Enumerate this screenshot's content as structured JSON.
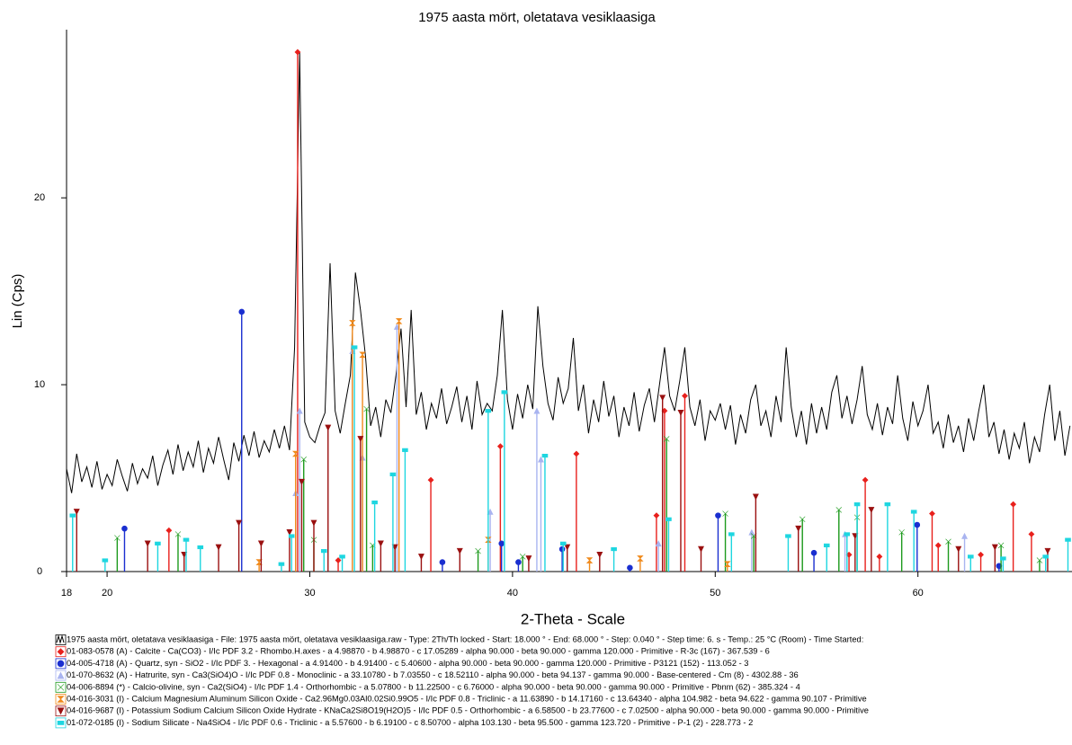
{
  "chart_data": {
    "type": "xrd",
    "title": "1975 aasta mört, oletatava vesiklaasiga",
    "xlabel": "2-Theta - Scale",
    "ylabel": "Lin (Cps)",
    "xlim": [
      18,
      67.6
    ],
    "ylim": [
      0,
      29
    ],
    "xticks": [
      18,
      20,
      30,
      40,
      50,
      60
    ],
    "yticks": [
      0,
      10,
      20
    ],
    "series": [
      {
        "name": "1975 aasta mört, oletatava vesiklaasiga - File: 1975 aasta mört, oletatava vesiklaasiga.raw - Type: 2Th/Th locked - Start: 18.000 ° - End: 68.000 ° - Step: 0.040 ° - Step time: 6. s - Temp.: 25 °C (Room) - Time Started:",
        "type": "line",
        "color": "#000000",
        "x": [
          18,
          18.25,
          18.5,
          18.75,
          19,
          19.25,
          19.5,
          19.75,
          20,
          20.25,
          20.5,
          20.75,
          21,
          21.25,
          21.5,
          21.75,
          22,
          22.25,
          22.5,
          22.75,
          23,
          23.25,
          23.5,
          23.75,
          24,
          24.25,
          24.5,
          24.75,
          25,
          25.25,
          25.5,
          25.75,
          26,
          26.25,
          26.5,
          26.75,
          27,
          27.25,
          27.5,
          27.75,
          28,
          28.25,
          28.5,
          28.75,
          29,
          29.25,
          29.5,
          29.75,
          30,
          30.25,
          30.5,
          30.75,
          31,
          31.25,
          31.5,
          31.75,
          32,
          32.25,
          32.5,
          32.75,
          33,
          33.25,
          33.5,
          33.75,
          34,
          34.25,
          34.5,
          34.75,
          35,
          35.25,
          35.5,
          35.75,
          36,
          36.25,
          36.5,
          36.75,
          37,
          37.25,
          37.5,
          37.75,
          38,
          38.25,
          38.5,
          38.75,
          39,
          39.25,
          39.5,
          39.75,
          40,
          40.25,
          40.5,
          40.75,
          41,
          41.25,
          41.5,
          41.75,
          42,
          42.25,
          42.5,
          42.75,
          43,
          43.25,
          43.5,
          43.75,
          44,
          44.25,
          44.5,
          44.75,
          45,
          45.25,
          45.5,
          45.75,
          46,
          46.25,
          46.5,
          46.75,
          47,
          47.25,
          47.5,
          47.75,
          48,
          48.25,
          48.5,
          48.75,
          49,
          49.25,
          49.5,
          49.75,
          50,
          50.25,
          50.5,
          50.75,
          51,
          51.25,
          51.5,
          51.75,
          52,
          52.25,
          52.5,
          52.75,
          53,
          53.25,
          53.5,
          53.75,
          54,
          54.25,
          54.5,
          54.75,
          55,
          55.25,
          55.5,
          55.75,
          56,
          56.25,
          56.5,
          56.75,
          57,
          57.25,
          57.5,
          57.75,
          58,
          58.25,
          58.5,
          58.75,
          59,
          59.25,
          59.5,
          59.75,
          60,
          60.25,
          60.5,
          60.75,
          61,
          61.25,
          61.5,
          61.75,
          62,
          62.25,
          62.5,
          62.75,
          63,
          63.25,
          63.5,
          63.75,
          64,
          64.25,
          64.5,
          64.75,
          65,
          65.25,
          65.5,
          65.75,
          66,
          66.25,
          66.5,
          66.75,
          67,
          67.25,
          67.5
        ],
        "values": [
          5.5,
          4.2,
          6.3,
          4.8,
          5.6,
          4.5,
          5.9,
          4.4,
          5.2,
          4.6,
          6.0,
          5.1,
          4.3,
          5.8,
          4.7,
          5.5,
          5.0,
          6.2,
          4.6,
          5.7,
          6.5,
          5.2,
          6.8,
          5.4,
          6.4,
          5.6,
          7.0,
          5.3,
          6.6,
          5.8,
          7.2,
          6.0,
          4.9,
          6.9,
          5.9,
          7.3,
          6.2,
          7.5,
          6.1,
          7.0,
          6.4,
          7.6,
          6.6,
          7.8,
          6.5,
          12.0,
          27.8,
          8.0,
          7.2,
          6.9,
          7.8,
          8.5,
          16.5,
          8.6,
          7.4,
          9.0,
          10.5,
          16.0,
          14.0,
          11.5,
          7.8,
          8.8,
          7.2,
          9.2,
          8.5,
          10.5,
          13.0,
          8.8,
          14.0,
          8.4,
          9.6,
          7.6,
          9.0,
          8.2,
          9.8,
          7.9,
          8.8,
          9.9,
          8.0,
          9.4,
          7.6,
          10.2,
          8.4,
          9.0,
          8.6,
          10.5,
          14.0,
          9.2,
          7.6,
          9.5,
          8.2,
          10.0,
          8.7,
          14.2,
          11.0,
          9.0,
          8.1,
          10.4,
          9.0,
          9.8,
          12.5,
          8.6,
          10.0,
          7.4,
          9.2,
          8.0,
          10.2,
          8.3,
          9.4,
          7.2,
          8.8,
          7.8,
          9.6,
          7.5,
          8.9,
          9.8,
          8.0,
          10.0,
          12.0,
          9.4,
          8.6,
          10.2,
          12.0,
          8.8,
          7.8,
          9.2,
          7.0,
          8.6,
          8.1,
          9.0,
          7.6,
          8.9,
          6.8,
          8.4,
          7.4,
          9.2,
          10.0,
          7.8,
          8.6,
          7.2,
          9.4,
          8.0,
          12.0,
          8.8,
          7.2,
          8.6,
          6.8,
          9.0,
          7.4,
          8.8,
          7.6,
          9.6,
          10.5,
          8.2,
          9.4,
          7.9,
          9.2,
          11.0,
          8.4,
          7.6,
          9.0,
          7.3,
          8.8,
          7.9,
          10.5,
          8.2,
          7.0,
          9.1,
          7.8,
          8.6,
          10.0,
          7.4,
          8.0,
          6.6,
          8.4,
          6.9,
          7.8,
          6.4,
          8.2,
          7.0,
          8.6,
          10.0,
          7.2,
          8.0,
          6.3,
          7.6,
          6.0,
          7.4,
          6.6,
          8.0,
          5.8,
          7.2,
          6.4,
          8.4,
          10.0,
          7.0,
          8.6,
          6.2,
          7.8
        ]
      },
      {
        "name": "01-083-0578 (A) - Calcite - Ca(CO3) - I/Ic PDF 3.2 - Rhombo.H.axes - a 4.98870 - b 4.98870 - c 17.05289 - alpha 90.000 - beta 90.000 - gamma 120.000 - Primitive - R-3c (167) - 367.539 - 6",
        "type": "stick",
        "marker": "diamond",
        "color": "#e8201c",
        "x": [
          23.05,
          29.4,
          31.4,
          35.97,
          39.4,
          43.15,
          47.1,
          47.5,
          48.5,
          56.6,
          57.4,
          58.1,
          60.7,
          61.0,
          63.1,
          64.7,
          65.6
        ],
        "values": [
          2.2,
          27.8,
          0.6,
          4.9,
          6.7,
          6.3,
          3.0,
          8.6,
          9.4,
          0.9,
          4.9,
          0.8,
          3.1,
          1.4,
          0.9,
          3.6,
          2.0
        ]
      },
      {
        "name": "04-005-4718 (A) - Quartz, syn - SiO2 - I/Ic PDF 3. - Hexagonal - a 4.91400 - b 4.91400 - c 5.40600 - alpha 90.000 - beta 90.000 - gamma 120.000 - Primitive - P3121 (152) - 113.052 - 3",
        "type": "stick",
        "marker": "circle",
        "color": "#1a2fd0",
        "x": [
          20.86,
          26.64,
          36.54,
          39.46,
          40.29,
          42.45,
          45.79,
          50.14,
          54.87,
          59.96,
          64.0
        ],
        "values": [
          2.3,
          13.9,
          0.5,
          1.5,
          0.5,
          1.2,
          0.2,
          3.0,
          1.0,
          2.5,
          0.3
        ]
      },
      {
        "name": "01-070-8632 (A) - Hatrurite, syn - Ca3(SiO4)O - I/Ic PDF 0.8 - Monoclinic - a 33.10780 - b 7.03550 - c 18.52110 - alpha 90.000 - beta 94.137 - gamma 90.000 - Base-centered - Cm (8) - 4302.88 - 36",
        "type": "stick",
        "marker": "triangle",
        "color": "#a9b4f0",
        "x": [
          29.3,
          29.5,
          32.1,
          32.6,
          34.3,
          38.9,
          41.2,
          41.4,
          47.2,
          51.8,
          56.4,
          62.3
        ],
        "values": [
          4.2,
          8.6,
          11.8,
          6.1,
          13.1,
          3.2,
          8.6,
          6.0,
          1.5,
          2.1,
          2.0,
          1.9
        ]
      },
      {
        "name": "04-006-8894 (*) - Calcio-olivine, syn - Ca2(SiO4) - I/Ic PDF 1.4 - Orthorhombic - a 5.07800 - b 11.22500 - c 6.76000 - alpha 90.000 - beta 90.000 - gamma 90.000 - Primitive - Pbnm (62) - 385.324 - 4",
        "type": "stick",
        "marker": "bowtie",
        "color": "#1d9a1d",
        "x": [
          20.5,
          23.5,
          29.7,
          30.2,
          32.8,
          33.1,
          38.3,
          40.5,
          47.6,
          50.5,
          51.9,
          54.3,
          56.1,
          57.0,
          59.2,
          61.5,
          64.1,
          66.0
        ],
        "values": [
          1.8,
          2.0,
          6.0,
          1.7,
          8.7,
          1.4,
          1.1,
          0.8,
          7.1,
          3.1,
          1.9,
          2.8,
          3.3,
          2.9,
          2.1,
          1.6,
          1.4,
          0.6
        ]
      },
      {
        "name": "04-016-3031 (I) - Calcium Magnesium Aluminum Silicon Oxide - Ca2.96Mg0.03Al0.02Si0.99O5 - I/Ic PDF 0.8 - Triclinic - a 11.63890 - b 14.17160 - c 13.64340 - alpha 104.982 - beta 94.622 - gamma 90.107 - Primitive",
        "type": "stick",
        "marker": "hourglass",
        "color": "#f08a1c",
        "x": [
          27.5,
          29.3,
          32.1,
          32.6,
          34.4,
          38.8,
          43.8,
          46.3,
          50.6
        ],
        "values": [
          0.5,
          6.3,
          13.3,
          11.6,
          13.4,
          1.7,
          0.6,
          0.7,
          0.4
        ]
      },
      {
        "name": "04-016-9687 (I) - Potassium Sodium Calcium Silicon Oxide Hydrate - KNaCa2Si8O19(H2O)5 - I/Ic PDF 0.5 - Orthorhombic - a 6.58500 - b 23.77600 - c 7.02500 - alpha 90.000 - beta 90.000 - gamma 90.000 - Primitive",
        "type": "stick",
        "marker": "triangle-down",
        "color": "#9a1010",
        "x": [
          18.5,
          22.0,
          23.8,
          25.5,
          26.5,
          27.6,
          29.0,
          29.6,
          30.2,
          30.9,
          32.5,
          33.5,
          34.2,
          35.5,
          37.4,
          40.8,
          42.7,
          44.3,
          47.4,
          48.3,
          49.3,
          52.0,
          54.1,
          56.9,
          57.7,
          62.0,
          63.8,
          66.4
        ],
        "values": [
          3.2,
          1.5,
          0.9,
          1.3,
          2.6,
          1.5,
          2.1,
          4.8,
          2.6,
          7.7,
          7.1,
          1.5,
          1.3,
          0.8,
          1.1,
          0.7,
          1.3,
          0.9,
          9.3,
          8.5,
          1.2,
          4.0,
          2.3,
          1.9,
          3.3,
          1.2,
          1.3,
          1.1
        ]
      },
      {
        "name": "01-072-0185 (I) - Sodium Silicate - Na4SiO4 - I/Ic PDF 0.6 - Triclinic - a 5.57600 - b 6.19100 - c 8.50700 - alpha 103.130 - beta 95.500 - gamma 123.720 - Primitive - P-1 (2) - 228.773 - 2",
        "type": "stick",
        "marker": "bars",
        "color": "#1ed6e0",
        "x": [
          18.3,
          19.9,
          22.5,
          23.9,
          24.6,
          28.6,
          29.1,
          30.7,
          31.6,
          32.2,
          33.2,
          34.1,
          34.7,
          38.8,
          39.6,
          41.6,
          42.5,
          45.0,
          47.7,
          50.8,
          53.6,
          55.5,
          56.5,
          57.0,
          58.5,
          59.8,
          62.6,
          64.2,
          66.3,
          67.4
        ],
        "values": [
          3.0,
          0.6,
          1.5,
          1.7,
          1.3,
          0.4,
          1.9,
          1.1,
          0.8,
          12.0,
          3.7,
          5.2,
          6.5,
          8.6,
          9.6,
          6.2,
          1.5,
          1.2,
          2.8,
          2.0,
          1.9,
          1.4,
          2.0,
          3.6,
          3.6,
          3.2,
          0.8,
          0.7,
          0.8,
          1.7
        ]
      }
    ]
  }
}
